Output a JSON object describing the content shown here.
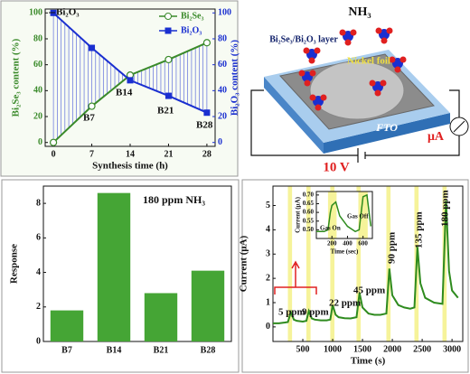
{
  "chart_data": [
    {
      "type": "line",
      "xlabel": "Synthesis time (h)",
      "ylabel": "Bi₂Se₃ content (%)",
      "y2label": "Bi₂O₃ content (%)",
      "x": [
        0,
        7,
        14,
        21,
        28
      ],
      "xlim": [
        -1.5,
        29.5
      ],
      "xticks": [
        0,
        7,
        14,
        21,
        28
      ],
      "ylim": [
        -3,
        103
      ],
      "yticks": [
        0,
        20,
        40,
        60,
        80,
        100
      ],
      "y2lim": [
        -3,
        103
      ],
      "y2ticks": [
        0,
        20,
        40,
        60,
        80,
        100
      ],
      "series": [
        {
          "name": "Bi₂Se₃",
          "color": "#3a8a2a",
          "values": [
            0,
            28,
            52,
            64,
            77
          ]
        },
        {
          "name": "Bi₂O₃",
          "color": "#1a2fd0",
          "axis": "y2",
          "values": [
            100,
            73,
            48,
            36,
            23
          ]
        }
      ],
      "annotations": [
        "Bi₂O₃",
        "B7",
        "B14",
        "B21",
        "B28"
      ],
      "legend": "upper right"
    },
    {
      "type": "bar",
      "ylabel": "Response",
      "annotation": "180 ppm NH₃",
      "categories": [
        "B7",
        "B14",
        "B21",
        "B28"
      ],
      "values": [
        1.8,
        8.6,
        2.8,
        4.1
      ],
      "color": "#45a535",
      "ylim": [
        0,
        9
      ],
      "yticks": [
        0,
        2,
        4,
        6,
        8
      ]
    },
    {
      "type": "line",
      "xlabel": "Time (s)",
      "ylabel": "Current (μA)",
      "x": [
        0,
        100,
        200,
        250,
        300,
        350,
        400,
        500,
        560,
        600,
        650,
        700,
        800,
        900,
        960,
        1000,
        1050,
        1100,
        1200,
        1300,
        1400,
        1450,
        1500,
        1600,
        1700,
        1800,
        1900,
        1950,
        2000,
        2100,
        2200,
        2300,
        2370,
        2420,
        2470,
        2550,
        2700,
        2840,
        2900,
        2950,
        3000,
        3100
      ],
      "series": [
        {
          "color": "#2e8b1e",
          "values": [
            0.15,
            0.15,
            0.18,
            0.2,
            0.6,
            0.3,
            0.25,
            0.22,
            0.25,
            0.65,
            0.35,
            0.3,
            0.27,
            0.27,
            0.3,
            0.9,
            0.5,
            0.4,
            0.36,
            0.35,
            0.4,
            1.4,
            0.8,
            0.55,
            0.5,
            0.5,
            0.55,
            2.4,
            1.3,
            0.9,
            0.8,
            0.75,
            0.8,
            3.3,
            1.8,
            1.2,
            1.0,
            0.95,
            5.2,
            2.3,
            1.5,
            1.2
          ]
        }
      ],
      "xlim": [
        0,
        3180
      ],
      "xticks": [
        500,
        1000,
        1500,
        2000,
        2500,
        3000
      ],
      "ylim": [
        -0.6,
        5.8
      ],
      "yticks": [
        0,
        1,
        2,
        3,
        4,
        5
      ],
      "shaded_spans": [
        [
          250,
          320
        ],
        [
          560,
          630
        ],
        [
          960,
          1030
        ],
        [
          1400,
          1470
        ],
        [
          1900,
          1970
        ],
        [
          2370,
          2440
        ],
        [
          2840,
          2910
        ]
      ],
      "annotations": [
        "5 ppm",
        "9 ppm",
        "22 ppm",
        "45 ppm",
        "90 ppm",
        "135 ppm",
        "180 ppm"
      ]
    },
    {
      "type": "line",
      "xlabel": "Time (sec)",
      "ylabel": "Current (μA)",
      "x": [
        0,
        100,
        150,
        180,
        200,
        250,
        300,
        400,
        500,
        550,
        600,
        650,
        700
      ],
      "series": [
        {
          "color": "#2e8b1e",
          "values": [
            0.49,
            0.49,
            0.5,
            0.6,
            0.64,
            0.66,
            0.58,
            0.52,
            0.49,
            0.5,
            0.69,
            0.7,
            0.52
          ]
        }
      ],
      "xlim": [
        0,
        720
      ],
      "xticks": [
        200,
        400,
        600
      ],
      "ylim": [
        0.45,
        0.72
      ],
      "yticks": [
        {
          "value": 0.5,
          "label": "0.50"
        },
        {
          "value": 0.55,
          "label": "0.55"
        },
        {
          "value": 0.6,
          "label": "0.60"
        },
        {
          "value": 0.65,
          "label": "0.65"
        },
        {
          "value": 0.7,
          "label": "0.70"
        }
      ],
      "shaded_spans": [
        [
          150,
          260
        ],
        [
          540,
          660
        ]
      ],
      "annotations": [
        "Gas On",
        "Gas Off"
      ]
    }
  ],
  "schematic": {
    "gas": "NH₃",
    "layer": "Bi₂Se₃/Bi₂O₃ layer",
    "foil": "Nickel foil",
    "substrate": "FTO",
    "voltage": "10 V",
    "meter": "μA"
  }
}
